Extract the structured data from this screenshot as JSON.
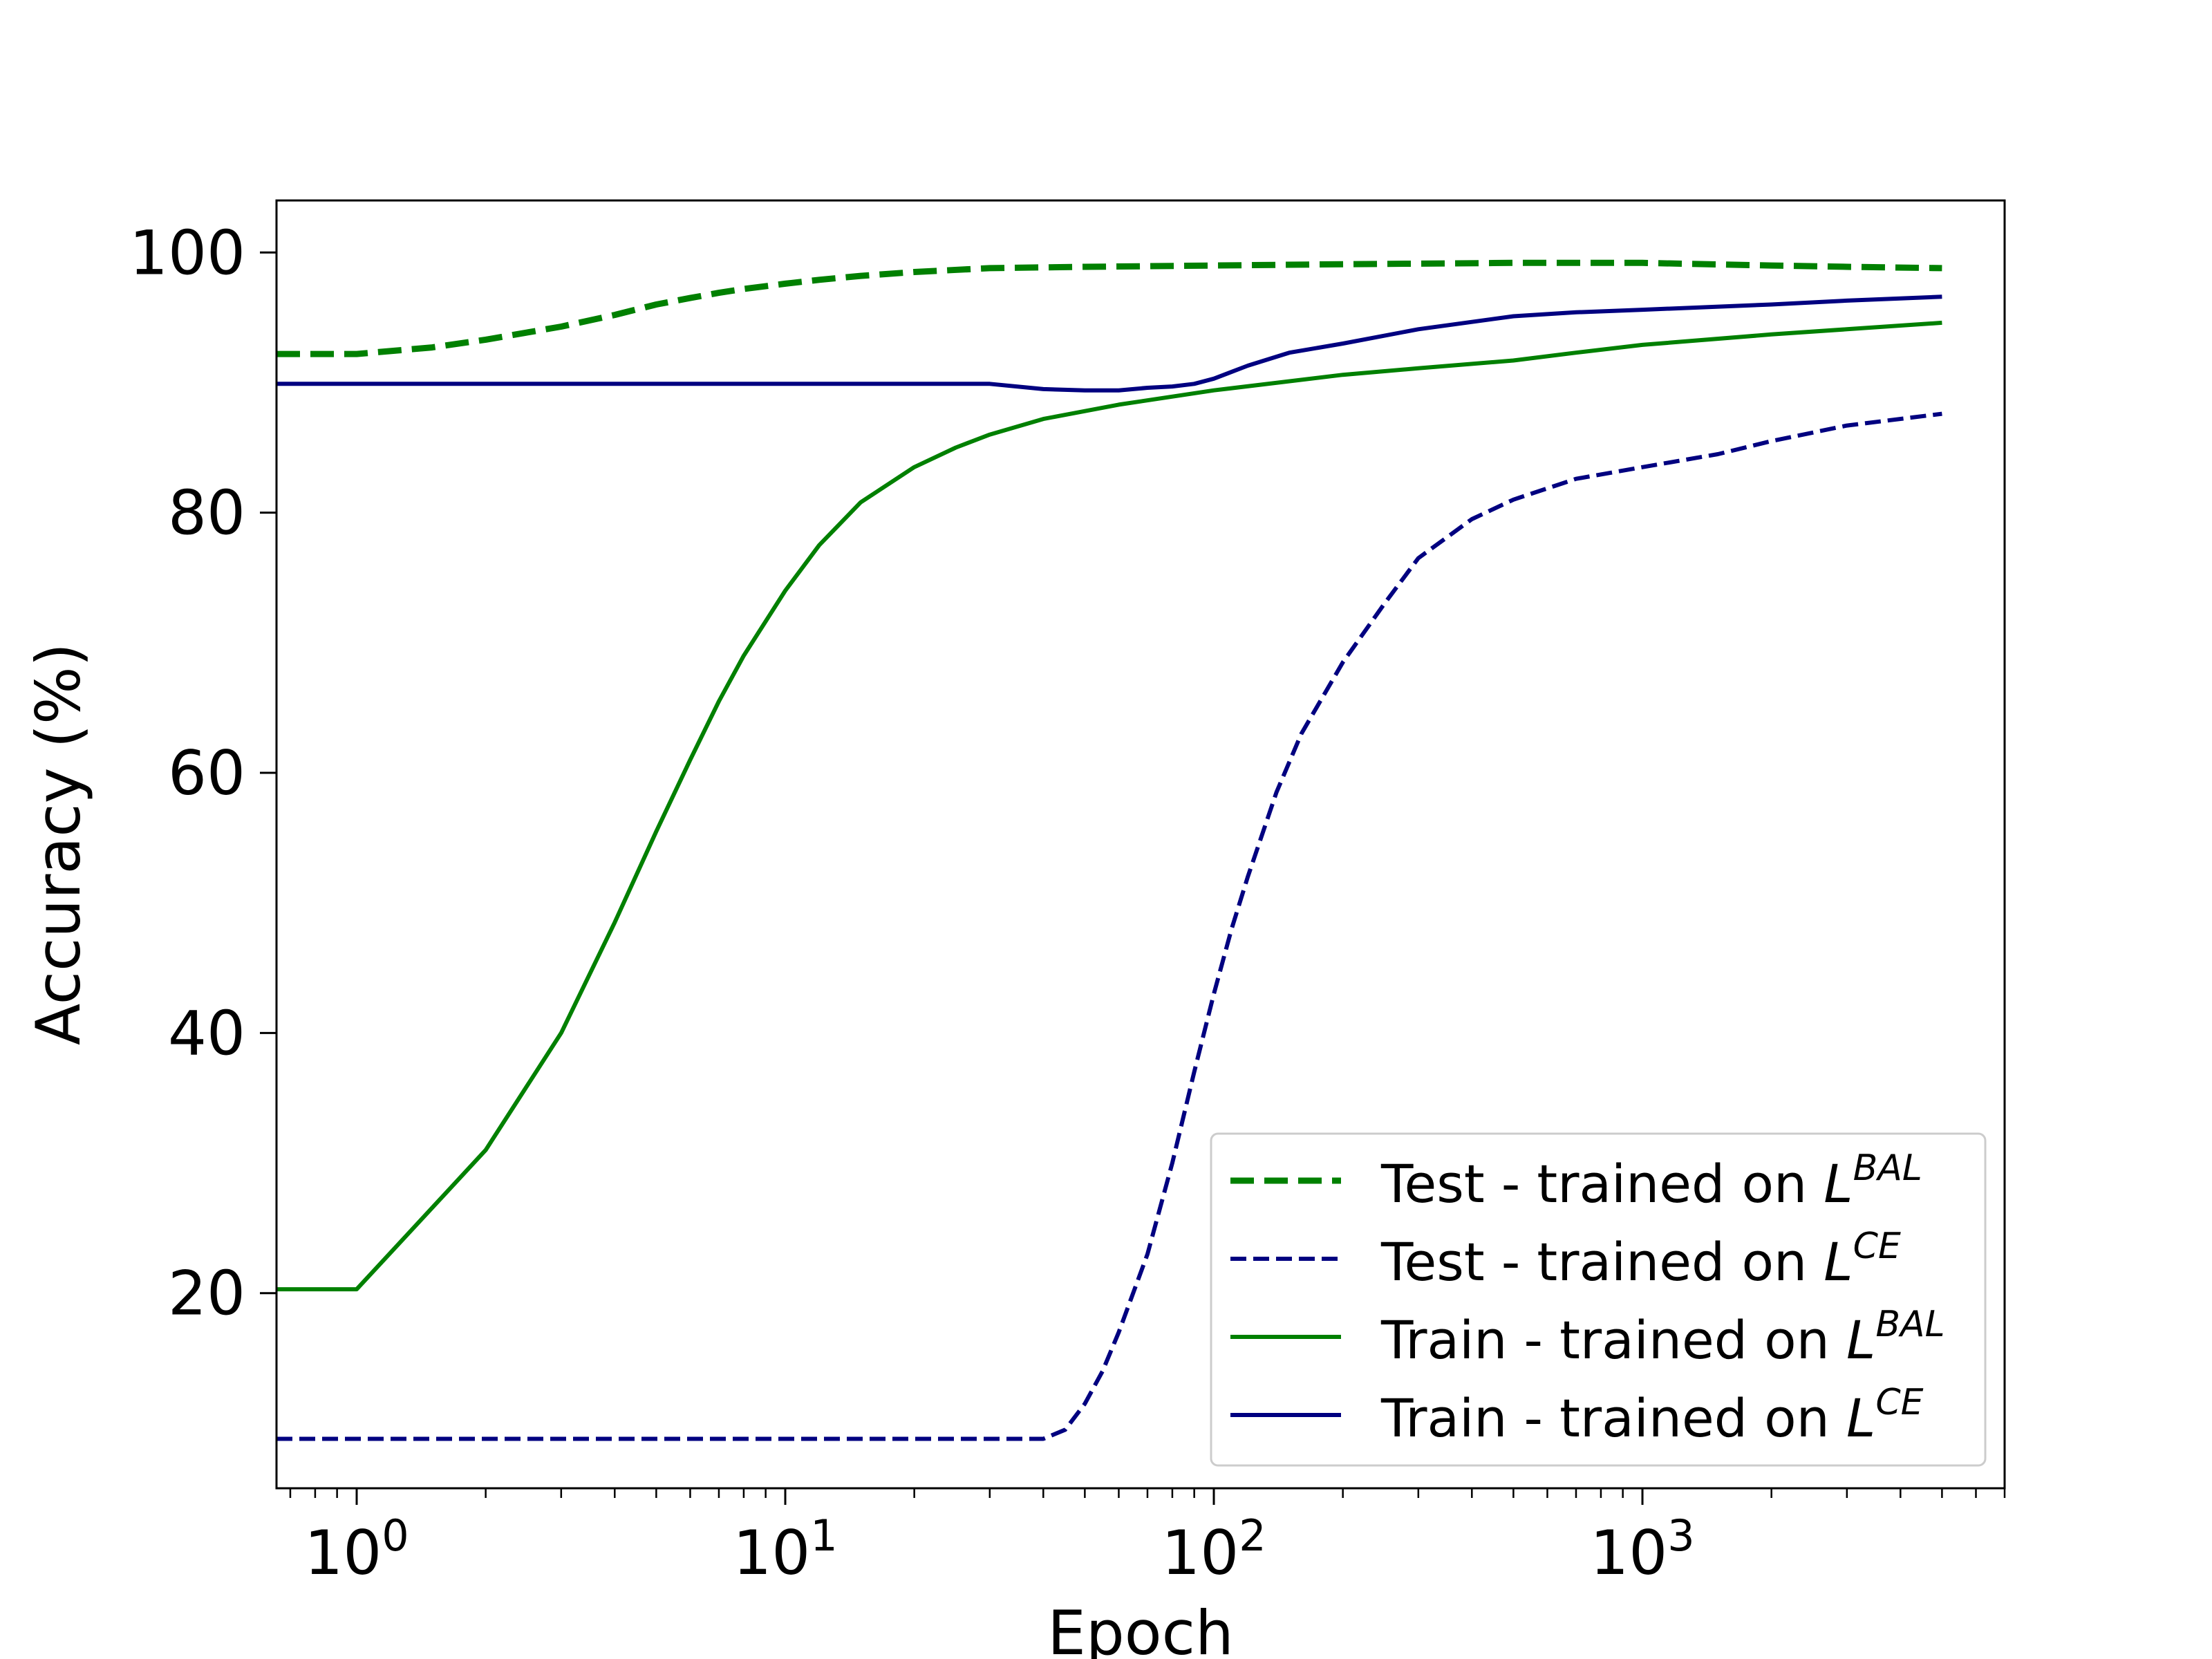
{
  "chart_data": {
    "type": "line",
    "title": "",
    "xlabel": "Epoch",
    "ylabel": "Accuracy (%)",
    "xscale": "log",
    "xlim": [
      0.65,
      7000
    ],
    "ylim": [
      5,
      104
    ],
    "grid": false,
    "legend_position": "lower right",
    "x_ticks": [
      {
        "value": 1,
        "base": "10",
        "exp": "0"
      },
      {
        "value": 10,
        "base": "10",
        "exp": "1"
      },
      {
        "value": 100,
        "base": "10",
        "exp": "2"
      },
      {
        "value": 1000,
        "base": "10",
        "exp": "3"
      }
    ],
    "y_ticks": [
      {
        "value": 20,
        "label": "20"
      },
      {
        "value": 40,
        "label": "40"
      },
      {
        "value": 60,
        "label": "60"
      },
      {
        "value": 80,
        "label": "80"
      },
      {
        "value": 100,
        "label": "100"
      }
    ],
    "series": [
      {
        "name": "Test - trained on L^BAL",
        "legend_text": "Test - trained on ",
        "legend_sup": "BAL",
        "color": "#008000",
        "style": "dashed-thick",
        "x": [
          0.65,
          1,
          1.5,
          2,
          3,
          4,
          5,
          6,
          7,
          8,
          10,
          12,
          15,
          20,
          30,
          50,
          100,
          200,
          500,
          1000,
          2000,
          3000,
          5000
        ],
        "y": [
          92.2,
          92.2,
          92.7,
          93.3,
          94.3,
          95.2,
          96.0,
          96.5,
          96.9,
          97.2,
          97.6,
          97.9,
          98.2,
          98.5,
          98.8,
          98.9,
          99.0,
          99.1,
          99.2,
          99.2,
          99.0,
          98.9,
          98.8
        ]
      },
      {
        "name": "Test - trained on L^CE",
        "legend_text": "Test - trained on ",
        "legend_sup": "CE",
        "color": "#000080",
        "style": "dashed",
        "x": [
          0.65,
          1,
          5,
          10,
          20,
          40,
          45,
          50,
          55,
          60,
          70,
          80,
          90,
          100,
          110,
          120,
          140,
          160,
          200,
          250,
          300,
          400,
          500,
          700,
          1000,
          1500,
          2000,
          3000,
          5000
        ],
        "y": [
          8.8,
          8.8,
          8.8,
          8.8,
          8.8,
          8.8,
          9.5,
          11.5,
          14.0,
          17.0,
          23.0,
          30.0,
          37.0,
          43.0,
          48.0,
          52.0,
          58.5,
          63.0,
          68.5,
          73.0,
          76.5,
          79.5,
          81.0,
          82.6,
          83.5,
          84.5,
          85.5,
          86.7,
          87.6
        ]
      },
      {
        "name": "Train - trained on L^BAL",
        "legend_text": "Train - trained on ",
        "legend_sup": "BAL",
        "color": "#008000",
        "style": "solid",
        "x": [
          0.65,
          1,
          2,
          3,
          4,
          5,
          6,
          7,
          8,
          10,
          12,
          15,
          20,
          25,
          30,
          40,
          60,
          100,
          200,
          300,
          500,
          700,
          1000,
          2000,
          3000,
          5000
        ],
        "y": [
          20.3,
          20.3,
          31.0,
          40.0,
          48.5,
          55.5,
          61.0,
          65.5,
          69.0,
          74.0,
          77.5,
          80.8,
          83.5,
          85.0,
          86.0,
          87.2,
          88.3,
          89.4,
          90.6,
          91.1,
          91.7,
          92.3,
          92.9,
          93.7,
          94.1,
          94.6
        ]
      },
      {
        "name": "Train - trained on L^CE",
        "legend_text": "Train - trained on ",
        "legend_sup": "CE",
        "color": "#000080",
        "style": "solid",
        "x": [
          0.65,
          1,
          10,
          20,
          30,
          40,
          50,
          60,
          70,
          80,
          90,
          100,
          120,
          150,
          200,
          300,
          500,
          700,
          1000,
          2000,
          3000,
          5000
        ],
        "y": [
          89.9,
          89.9,
          89.9,
          89.9,
          89.9,
          89.5,
          89.4,
          89.4,
          89.6,
          89.7,
          89.9,
          90.3,
          91.3,
          92.3,
          93.0,
          94.1,
          95.1,
          95.4,
          95.6,
          96.0,
          96.3,
          96.6
        ]
      }
    ]
  }
}
